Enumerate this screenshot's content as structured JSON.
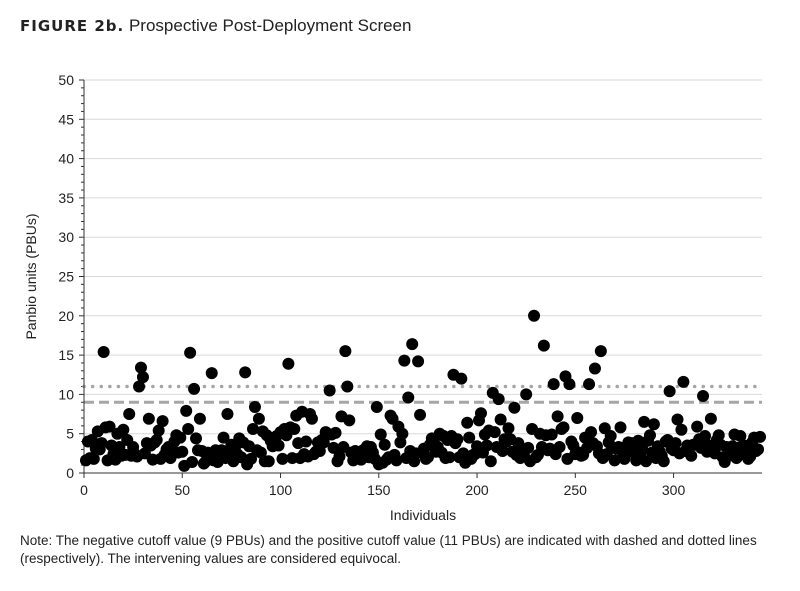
{
  "figure_label": "FIGURE 2b.",
  "figure_title": "Prospective Post-Deployment Screen",
  "note": "Note: The negative cutoff value (9 PBUs) and the positive cutoff value (11 PBUs) are indicated with dashed and dotted lines (respectively). The intervening values are considered equivocal.",
  "chart_data": {
    "type": "scatter",
    "title": "",
    "xlabel": "Individuals",
    "ylabel": "Panbio units (PBUs)",
    "xlim": [
      0,
      345
    ],
    "ylim": [
      0,
      50
    ],
    "xticks": [
      0,
      50,
      100,
      150,
      200,
      250,
      300
    ],
    "yticks": [
      0,
      5,
      10,
      15,
      20,
      25,
      30,
      35,
      40,
      45,
      50
    ],
    "grid": "horizontal",
    "point_color": "#000000",
    "reference_lines": [
      {
        "y": 9,
        "style": "dashed",
        "color": "#a6a6a6"
      },
      {
        "y": 11,
        "style": "dotted",
        "color": "#a6a6a6"
      }
    ],
    "x_start": 1,
    "y": [
      1.6,
      4.0,
      1.9,
      4.2,
      1.8,
      3.1,
      5.3,
      3.0,
      3.8,
      15.4,
      5.8,
      1.6,
      5.9,
      3.5,
      2.4,
      1.7,
      5.0,
      3.3,
      2.2,
      5.5,
      2.3,
      4.2,
      7.5,
      2.2,
      3.3,
      2.4,
      2.1,
      11.0,
      13.4,
      12.2,
      2.5,
      3.8,
      6.9,
      3.5,
      1.7,
      3.9,
      4.2,
      5.4,
      1.8,
      6.6,
      2.3,
      3.0,
      3.3,
      1.9,
      2.8,
      4.0,
      4.8,
      2.6,
      4.5,
      2.7,
      0.9,
      7.9,
      5.6,
      15.3,
      1.4,
      10.7,
      4.4,
      2.9,
      6.9,
      2.8,
      1.2,
      1.5,
      2.6,
      2.4,
      12.7,
      1.6,
      2.9,
      1.4,
      2.5,
      2.9,
      4.5,
      1.9,
      7.5,
      2.6,
      3.6,
      1.5,
      3.4,
      2.4,
      4.4,
      2.0,
      3.9,
      12.8,
      1.1,
      3.4,
      1.8,
      5.6,
      8.4,
      2.9,
      6.9,
      2.6,
      5.3,
      1.5,
      4.8,
      1.5,
      4.1,
      3.4,
      4.4,
      4.7,
      3.5,
      5.2,
      1.8,
      5.6,
      4.8,
      13.9,
      5.8,
      1.9,
      5.6,
      7.3,
      3.8,
      1.9,
      7.8,
      2.4,
      4.0,
      2.1,
      7.5,
      6.9,
      2.4,
      2.7,
      3.9,
      2.8,
      4.2,
      3.9,
      5.2,
      5.0,
      10.5,
      4.9,
      3.2,
      5.1,
      1.5,
      2.1,
      7.2,
      3.3,
      15.5,
      11.0,
      6.7,
      2.6,
      1.6,
      2.8,
      2.4,
      2.2,
      1.7,
      2.9,
      2.4,
      3.4,
      2.0,
      3.3,
      2.6,
      1.8,
      8.4,
      1.1,
      4.9,
      1.3,
      3.6,
      1.7,
      2.0,
      7.3,
      6.9,
      2.3,
      1.6,
      5.9,
      3.9,
      5.0,
      14.3,
      1.9,
      9.6,
      2.8,
      16.4,
      1.5,
      2.5,
      14.2,
      7.4,
      2.6,
      3.1,
      1.8,
      2.0,
      3.6,
      4.4,
      4.0,
      2.7,
      3.3,
      5.0,
      2.6,
      4.7,
      1.9,
      4.2,
      2.0,
      4.7,
      12.5,
      3.8,
      4.3,
      2.0,
      12.0,
      2.5,
      1.3,
      6.4,
      4.5,
      1.8,
      2.3,
      2.4,
      3.4,
      6.7,
      7.6,
      2.6,
      4.9,
      3.5,
      5.4,
      1.5,
      10.2,
      5.2,
      3.3,
      9.4,
      6.8,
      2.8,
      4.3,
      4.0,
      5.7,
      4.3,
      2.7,
      8.3,
      2.3,
      3.8,
      1.9,
      2.8,
      2.1,
      10.0,
      3.2,
      1.5,
      5.6,
      20.0,
      2.0,
      2.3,
      5.0,
      3.3,
      16.2,
      4.8,
      2.9,
      3.1,
      4.9,
      11.3,
      2.4,
      7.2,
      3.3,
      5.6,
      5.8,
      12.3,
      1.8,
      11.3,
      4.0,
      3.5,
      2.4,
      7.0,
      2.6,
      2.2,
      2.3,
      4.5,
      3.2,
      11.3,
      5.2,
      3.8,
      13.3,
      3.4,
      2.5,
      15.5,
      1.9,
      5.7,
      2.4,
      3.9,
      4.7,
      3.2,
      1.6,
      3.1,
      3.3,
      5.8,
      2.7,
      1.8,
      3.4,
      3.9,
      2.7,
      3.8,
      3.6,
      1.6,
      4.1,
      2.4,
      3.1,
      6.5,
      1.5,
      4.1,
      4.8,
      2.6,
      6.2,
      1.9,
      3.4,
      2.7,
      2.2,
      1.5,
      4.0,
      4.2,
      10.4,
      3.1,
      2.9,
      3.8,
      6.8,
      2.5,
      5.5,
      11.6,
      2.8,
      3.5,
      3.3,
      2.2,
      3.6,
      3.6,
      5.9,
      4.3,
      3.2,
      9.8,
      4.7,
      2.7,
      3.5,
      6.9,
      3.0,
      2.5,
      4.2,
      4.8,
      3.6,
      2.0,
      1.4,
      3.3,
      2.2,
      2.6,
      3.4,
      4.9,
      1.9,
      3.2,
      4.7,
      2.4,
      3.5,
      2.9,
      1.8,
      2.1,
      3.9,
      4.5,
      2.8,
      3.0,
      4.6
    ]
  }
}
